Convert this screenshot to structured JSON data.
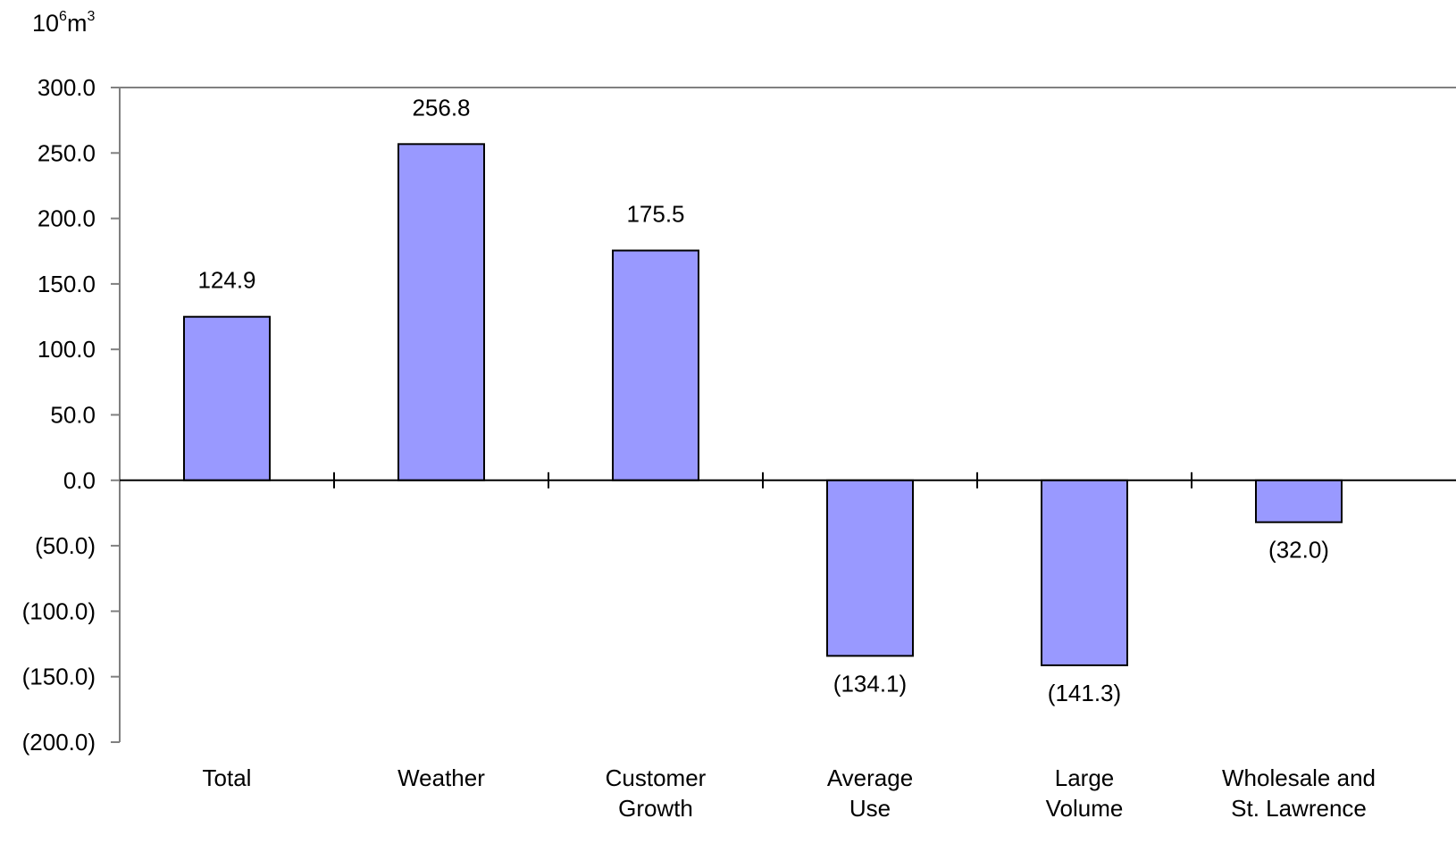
{
  "unit_label": {
    "base": "10",
    "base_exp": "6",
    "unit": "m",
    "unit_exp": "3"
  },
  "chart_data": {
    "type": "bar",
    "title": "",
    "xlabel": "",
    "ylabel": "",
    "ylim": [
      -200,
      300
    ],
    "y_ticks": [
      300,
      250,
      200,
      150,
      100,
      50,
      0,
      -50,
      -100,
      -150,
      -200
    ],
    "y_tick_labels": [
      "300.0",
      "250.0",
      "200.0",
      "150.0",
      "100.0",
      "50.0",
      "0.0",
      "(50.0)",
      "(100.0)",
      "(150.0)",
      "(200.0)"
    ],
    "categories": [
      [
        "Total"
      ],
      [
        "Weather"
      ],
      [
        "Customer",
        "Growth"
      ],
      [
        "Average",
        "Use"
      ],
      [
        "Large",
        "Volume"
      ],
      [
        "Wholesale and",
        "St. Lawrence"
      ]
    ],
    "values": [
      124.9,
      256.8,
      175.5,
      -134.1,
      -141.3,
      -32.0
    ],
    "data_labels": [
      "124.9",
      "256.8",
      "175.5",
      "(134.1)",
      "(141.3)",
      "(32.0)"
    ],
    "bar_color": "#9999ff",
    "bar_border_color": "#000000",
    "grid": false,
    "legend": "none"
  }
}
